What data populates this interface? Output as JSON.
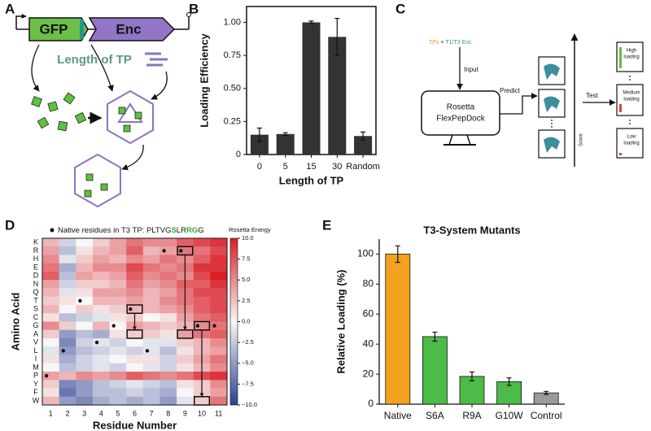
{
  "panels": [
    "A",
    "B",
    "C",
    "D",
    "E"
  ],
  "panel_a": {
    "gene_1": "GFP",
    "gene_2": "Enc",
    "label": "Length of TP"
  },
  "panel_c": {
    "input_1": "TPs",
    "input_plus": "+",
    "input_2": "T1/T3 Enc",
    "input": "Input",
    "software_1": "Rosetta",
    "software_2": "FlexPepDock",
    "predict": "Predict",
    "score": "Score",
    "test": "Test",
    "results": [
      [
        "High",
        "loading"
      ],
      [
        "Medium",
        "loading"
      ],
      [
        "Low",
        "loading"
      ]
    ]
  },
  "chart_data": [
    {
      "type": "bar",
      "x_label": "Length of TP",
      "y_label": "Loading Efficiency",
      "categories": [
        "0",
        "5",
        "15",
        "30",
        "Random"
      ],
      "values": [
        0.15,
        0.155,
        1.0,
        0.89,
        0.14
      ],
      "errors": [
        0.05,
        0.01,
        0.01,
        0.14,
        0.03
      ],
      "color": "#333333",
      "ylim": [
        0,
        1.12
      ],
      "yticks": [
        0,
        0.25,
        {
          "value": 0.5,
          "label": "0.50"
        },
        0.75,
        {
          "value": 1,
          "label": "1.00"
        }
      ]
    },
    {
      "type": "heatmap",
      "x_label": "Residue Number",
      "y_label": "Amino Acid",
      "legend_label": "Native residues in T3 TP: ",
      "native_residues": [
        "P",
        "L",
        "T",
        "V",
        "G",
        "S",
        "L",
        "R",
        "R",
        "G",
        "G"
      ],
      "colorbar_label": "Rosetta Energy",
      "columns": [
        1,
        2,
        3,
        4,
        5,
        6,
        7,
        8,
        9,
        10,
        11
      ],
      "rows": [
        "K",
        "R",
        "H",
        "E",
        "D",
        "N",
        "Q",
        "T",
        "S",
        "C",
        "G",
        "A",
        "V",
        "L",
        "I",
        "M",
        "P",
        "Y",
        "F",
        "W"
      ],
      "values": [
        [
          3,
          -2,
          0,
          2,
          4,
          6,
          5,
          5,
          7,
          8,
          9
        ],
        [
          4,
          -3,
          1,
          3,
          4,
          7,
          3,
          4,
          6,
          6,
          8
        ],
        [
          5,
          -1,
          2,
          4,
          3,
          5,
          4,
          6,
          5,
          7,
          9
        ],
        [
          6,
          -4,
          3,
          5,
          5,
          8,
          6,
          5,
          6,
          9,
          9
        ],
        [
          7,
          -3,
          4,
          3,
          4,
          7,
          5,
          6,
          5,
          8,
          10
        ],
        [
          4,
          -2,
          2,
          2,
          3,
          6,
          4,
          5,
          7,
          7,
          9
        ],
        [
          3,
          -1,
          1,
          4,
          4,
          5,
          3,
          4,
          6,
          8,
          8
        ],
        [
          2,
          1,
          0,
          3,
          3,
          4,
          3,
          5,
          6,
          7,
          8
        ],
        [
          3,
          0,
          2,
          1,
          2,
          3,
          3,
          4,
          5,
          7,
          8
        ],
        [
          1,
          -3,
          -2,
          -1,
          1,
          2,
          0,
          1,
          4,
          6,
          7
        ],
        [
          5,
          2,
          0,
          3,
          0,
          4,
          3,
          2,
          3,
          5,
          6
        ],
        [
          2,
          -5,
          -3,
          -4,
          1,
          2,
          2,
          1,
          4,
          6,
          7
        ],
        [
          0,
          -6,
          -2,
          -1,
          -2,
          0,
          -1,
          -1,
          2,
          3,
          5
        ],
        [
          -1,
          -5,
          -3,
          -2,
          -1,
          -2,
          -1,
          -3,
          1,
          3,
          4
        ],
        [
          1,
          -4,
          -2,
          -1,
          0,
          1,
          1,
          -2,
          2,
          4,
          6
        ],
        [
          0,
          -3,
          -2,
          -1,
          -2,
          0,
          -1,
          -2,
          1,
          3,
          5
        ],
        [
          4,
          3,
          5,
          4,
          5,
          7,
          6,
          5,
          6,
          8,
          9
        ],
        [
          2,
          -6,
          -5,
          -3,
          -2,
          -1,
          -2,
          -3,
          1,
          2,
          5
        ],
        [
          1,
          -7,
          -5,
          -3,
          -3,
          -2,
          -3,
          -4,
          0,
          2,
          4
        ],
        [
          3,
          -5,
          -6,
          -4,
          -3,
          -4,
          -3,
          -5,
          -1,
          2,
          6
        ]
      ],
      "colormap": [
        "#2c3f94",
        "#f7f7f7",
        "#d81f26"
      ],
      "clim": [
        -10,
        10
      ],
      "cticks": [
        {
          "value": 10,
          "label": "10.0"
        },
        7.5,
        {
          "value": 5,
          "label": "5.0"
        },
        2.5,
        {
          "value": 0,
          "label": "0.0"
        },
        {
          "value": -2.5,
          "label": "−2.5"
        },
        {
          "value": -5,
          "label": "−5.0"
        },
        {
          "value": -7.5,
          "label": "−7.5"
        },
        {
          "value": -10,
          "label": "−10.0"
        }
      ]
    },
    {
      "type": "bar",
      "title": "T3-System Mutants",
      "y_label": "Relative Loading (%)",
      "categories": [
        "Native",
        "S6A",
        "R9A",
        "G10W",
        "Control"
      ],
      "values": [
        100,
        45,
        18.5,
        15,
        7.5
      ],
      "errors": [
        5.5,
        3,
        3,
        2.5,
        1
      ],
      "colors": [
        "#f4a11f",
        "#4cbb47",
        "#4cbb47",
        "#4cbb47",
        "#9a9a9a"
      ],
      "ylim": [
        0,
        110
      ],
      "yticks": [
        0,
        20,
        40,
        60,
        80,
        100
      ]
    }
  ]
}
